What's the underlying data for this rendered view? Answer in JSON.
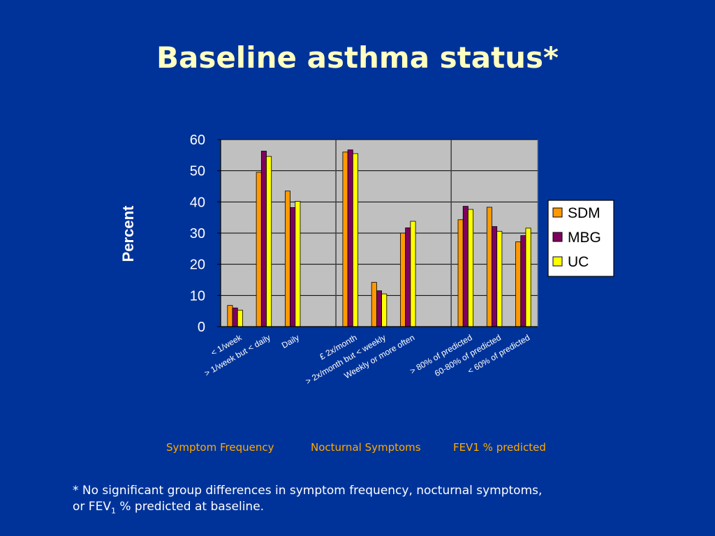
{
  "slide": {
    "title": "Baseline asthma status*",
    "group_labels": [
      "Symptom Frequency",
      "Nocturnal Symptoms",
      "FEV1 % predicted"
    ],
    "footnote": {
      "line1": "*  No significant group differences in symptom frequency, nocturnal symptoms,",
      "line2_prefix": "or FEV",
      "line2_sub": "1",
      "line2_suffix": " % predicted at baseline."
    }
  },
  "chart_data": {
    "type": "bar",
    "ylabel": "Percent",
    "ylim": [
      0,
      60
    ],
    "yticks": [
      0,
      10,
      20,
      30,
      40,
      50,
      60
    ],
    "grid": true,
    "legend_position": "right",
    "categories": [
      "< 1/week",
      "> 1/week but < daily",
      "Daily",
      "",
      "£ 2x/month",
      "> 2x/month but < weekly",
      "Weekly or more often",
      "",
      "> 80% of predicted",
      "60-80% of predicted",
      "< 60% of predicted"
    ],
    "category_label_clip": [
      false,
      false,
      false,
      false,
      false,
      true,
      true,
      false,
      false,
      false,
      false
    ],
    "groups": [
      {
        "label": "Symptom Frequency",
        "category_indices": [
          0,
          1,
          2
        ]
      },
      {
        "label": "Nocturnal Symptoms",
        "category_indices": [
          4,
          5,
          6
        ]
      },
      {
        "label": "FEV1 % predicted",
        "category_indices": [
          8,
          9,
          10
        ]
      }
    ],
    "separators_after_category": [
      3,
      7
    ],
    "series": [
      {
        "name": "SDM",
        "color": "#ff9900",
        "values": [
          6.8,
          49.5,
          43.5,
          null,
          56,
          14.2,
          30,
          null,
          34.3,
          38.3,
          27.2
        ]
      },
      {
        "name": "MBG",
        "color": "#800060",
        "values": [
          6.0,
          56.3,
          38.2,
          null,
          56.7,
          11.5,
          31.7,
          null,
          38.6,
          32.1,
          29.2
        ]
      },
      {
        "name": "UC",
        "color": "#ffff00",
        "values": [
          5.3,
          54.6,
          40.2,
          null,
          55.5,
          10.5,
          33.8,
          null,
          37.6,
          30.6,
          31.6
        ]
      }
    ],
    "colors": {
      "plot_background": "#c0c0c0",
      "bar_outline": "#000000",
      "grid": "#000000"
    }
  }
}
